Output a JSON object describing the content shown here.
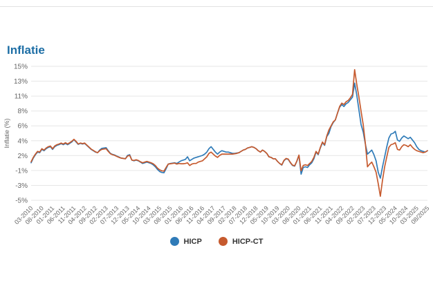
{
  "chart_data": {
    "type": "line",
    "title": "Inflatie",
    "ylabel": "Inflatie (%)",
    "ylim": [
      -5,
      15
    ],
    "grid": true,
    "legend_position": "bottom",
    "x_start": "03-2010",
    "x_end": "08/2025",
    "x_frequency": "monthly",
    "x_tick_labels": [
      "03-2010",
      "08-2010",
      "01-2011",
      "06-2011",
      "11-2011",
      "04-2012",
      "09-2012",
      "02-2013",
      "07-2013",
      "12-2013",
      "05-2014",
      "10-2014",
      "03-2015",
      "08-2015",
      "01-2016",
      "06-2016",
      "11-2016",
      "04-2017",
      "09-2017",
      "02-2018",
      "07-2018",
      "12-2018",
      "05-2019",
      "10-2019",
      "03-2020",
      "08-2020",
      "01-2021",
      "06-2021",
      "11-2021",
      "04-2022",
      "09-2022",
      "02-2023",
      "07-2023",
      "12-2023",
      "05-2024",
      "10-2024",
      "03-2025",
      "08/2025"
    ],
    "y_ticks": [
      {
        "value": 15,
        "label": "15%"
      },
      {
        "value": 12.78,
        "label": "13%"
      },
      {
        "value": 10.56,
        "label": "11%"
      },
      {
        "value": 8.33,
        "label": "8%"
      },
      {
        "value": 6.11,
        "label": "6%"
      },
      {
        "value": 3.89,
        "label": "4%"
      },
      {
        "value": 1.67,
        "label": "2%"
      },
      {
        "value": -0.56,
        "label": "-1%"
      },
      {
        "value": -2.78,
        "label": "-3%"
      },
      {
        "value": -5,
        "label": "-5%"
      }
    ],
    "series": [
      {
        "name": "HICP",
        "color": "#2f7bb8",
        "values": [
          0.6,
          1.3,
          1.8,
          2.2,
          2.1,
          2.6,
          2.4,
          2.7,
          2.9,
          3.0,
          2.6,
          3.0,
          3.2,
          3.3,
          3.45,
          3.3,
          3.5,
          3.3,
          3.5,
          3.7,
          4.05,
          3.7,
          3.35,
          3.5,
          3.4,
          3.5,
          3.2,
          2.9,
          2.6,
          2.4,
          2.2,
          2.1,
          2.5,
          2.75,
          2.8,
          2.85,
          2.4,
          2.0,
          1.85,
          1.75,
          1.6,
          1.45,
          1.3,
          1.25,
          1.2,
          1.7,
          1.8,
          1.0,
          0.9,
          1.0,
          0.9,
          0.7,
          0.5,
          0.6,
          0.7,
          0.6,
          0.5,
          0.3,
          0.0,
          -0.4,
          -0.7,
          -0.85,
          -0.9,
          -0.3,
          0.4,
          0.5,
          0.55,
          0.6,
          0.5,
          0.7,
          0.9,
          1.0,
          1.1,
          1.5,
          0.9,
          1.1,
          1.3,
          1.4,
          1.5,
          1.6,
          1.7,
          1.9,
          2.2,
          2.7,
          3.0,
          2.6,
          2.2,
          1.9,
          2.2,
          2.4,
          2.3,
          2.2,
          2.2,
          2.1,
          2.0,
          2.0,
          2.05,
          2.1,
          2.3,
          2.5,
          2.6,
          2.8,
          2.9,
          3.0,
          2.9,
          2.7,
          2.4,
          2.2,
          2.5,
          2.3,
          2.0,
          1.5,
          1.4,
          1.2,
          1.2,
          0.8,
          0.5,
          0.25,
          0.9,
          1.2,
          1.1,
          0.6,
          0.2,
          0.1,
          0.8,
          1.7,
          -1.1,
          -0.1,
          0.0,
          -0.1,
          0.3,
          0.6,
          1.2,
          2.2,
          1.8,
          2.8,
          3.6,
          3.2,
          4.5,
          5.0,
          6.0,
          6.6,
          7.0,
          8.0,
          8.9,
          9.3,
          9.0,
          9.4,
          9.6,
          10.0,
          10.4,
          12.5,
          10.7,
          8.5,
          6.3,
          5.2,
          3.4,
          1.9,
          2.2,
          2.5,
          1.8,
          0.9,
          -0.8,
          -1.7,
          0.0,
          1.5,
          3.0,
          4.3,
          4.9,
          5.0,
          5.3,
          4.0,
          3.8,
          4.3,
          4.6,
          4.4,
          4.2,
          4.4,
          4.0,
          3.6,
          3.0,
          2.6,
          2.4,
          2.3,
          2.2,
          2.4
        ]
      },
      {
        "name": "HICP-CT",
        "color": "#c65a2e",
        "values": [
          0.75,
          1.4,
          1.9,
          2.3,
          2.2,
          2.7,
          2.5,
          2.8,
          3.0,
          3.1,
          2.7,
          3.1,
          3.3,
          3.4,
          3.55,
          3.4,
          3.6,
          3.4,
          3.6,
          3.8,
          4.1,
          3.8,
          3.4,
          3.55,
          3.45,
          3.55,
          3.25,
          2.95,
          2.65,
          2.45,
          2.25,
          2.1,
          2.4,
          2.6,
          2.65,
          2.7,
          2.3,
          1.95,
          1.8,
          1.7,
          1.55,
          1.4,
          1.3,
          1.25,
          1.2,
          1.6,
          1.7,
          1.0,
          0.95,
          1.05,
          0.95,
          0.75,
          0.6,
          0.7,
          0.8,
          0.7,
          0.6,
          0.45,
          0.2,
          -0.2,
          -0.45,
          -0.6,
          -0.65,
          -0.1,
          0.4,
          0.45,
          0.5,
          0.55,
          0.4,
          0.5,
          0.45,
          0.45,
          0.5,
          0.6,
          0.2,
          0.4,
          0.5,
          0.5,
          0.7,
          0.8,
          0.9,
          1.2,
          1.5,
          2.0,
          2.2,
          1.9,
          1.6,
          1.4,
          1.7,
          1.9,
          1.9,
          1.9,
          1.9,
          1.9,
          1.9,
          1.95,
          2.0,
          2.1,
          2.3,
          2.5,
          2.6,
          2.8,
          2.9,
          3.0,
          2.9,
          2.7,
          2.4,
          2.2,
          2.5,
          2.3,
          2.0,
          1.5,
          1.4,
          1.2,
          1.2,
          0.8,
          0.5,
          0.3,
          0.95,
          1.25,
          1.15,
          0.65,
          0.25,
          0.15,
          0.85,
          1.75,
          -0.6,
          0.2,
          0.3,
          0.2,
          0.5,
          0.8,
          1.4,
          2.3,
          1.9,
          2.9,
          3.7,
          3.3,
          4.6,
          5.5,
          6.1,
          6.7,
          7.0,
          8.0,
          9.0,
          9.5,
          9.3,
          9.7,
          9.9,
          10.3,
          10.8,
          14.5,
          12.3,
          10.4,
          8.3,
          6.3,
          3.5,
          0.0,
          0.4,
          0.7,
          0.0,
          -0.8,
          -2.5,
          -4.4,
          -2.0,
          0.0,
          1.5,
          2.9,
          3.3,
          3.4,
          3.6,
          2.6,
          2.5,
          3.0,
          3.3,
          3.2,
          3.0,
          3.3,
          2.9,
          2.6,
          2.4,
          2.3,
          2.2,
          2.1,
          2.2,
          2.4
        ]
      }
    ],
    "style": {
      "title_color": "#1d6ea5",
      "grid_color": "#e6e6e6",
      "tick_label_color": "#666666",
      "legend_label_color": "#333333",
      "background": "#ffffff"
    }
  }
}
